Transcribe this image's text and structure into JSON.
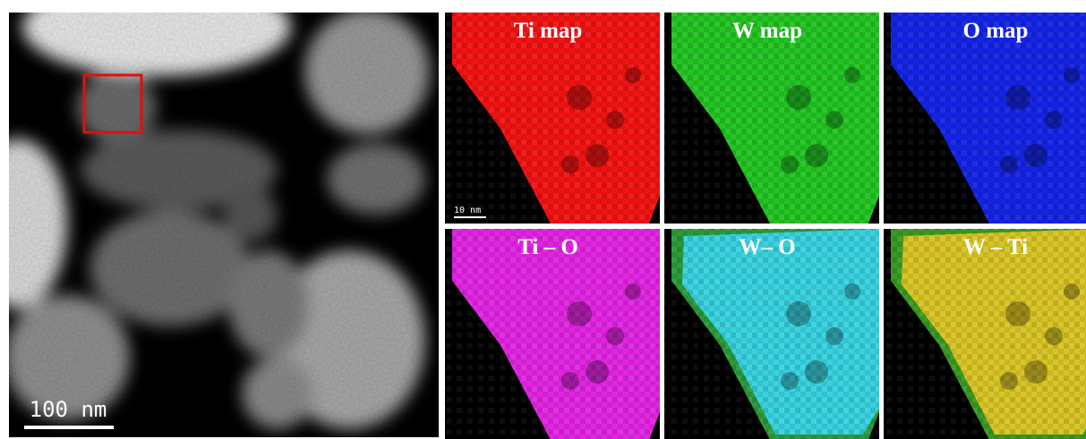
{
  "overview": {
    "scale_bar": "100 nm"
  },
  "maps": [
    {
      "label": "Ti map",
      "scale_bar": "10 nm"
    },
    {
      "label": "W map"
    },
    {
      "label": "O map"
    },
    {
      "label": "Ti – O"
    },
    {
      "label": "W– O"
    },
    {
      "label": "W – Ti"
    }
  ]
}
